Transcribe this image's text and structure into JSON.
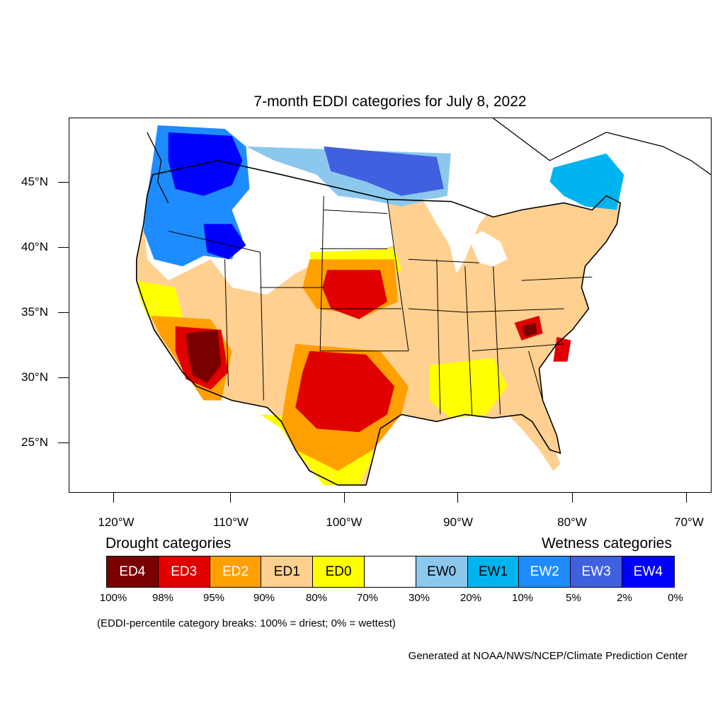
{
  "title": "7-month EDDI categories for July 8, 2022",
  "lat_labels": [
    "45°N",
    "40°N",
    "35°N",
    "30°N",
    "25°N"
  ],
  "lon_labels": [
    "120°W",
    "110°W",
    "100°W",
    "90°W",
    "80°W",
    "70°W"
  ],
  "legend": {
    "drought_heading": "Drought categories",
    "wetness_heading": "Wetness categories",
    "categories": [
      {
        "label": "ED4",
        "color": "#7a0000",
        "text_color": "#ffffff"
      },
      {
        "label": "ED3",
        "color": "#e00000",
        "text_color": "#ffffff"
      },
      {
        "label": "ED2",
        "color": "#ffa000",
        "text_color": "#ffffff"
      },
      {
        "label": "ED1",
        "color": "#ffd090",
        "text_color": "#000000"
      },
      {
        "label": "ED0",
        "color": "#ffff00",
        "text_color": "#000000"
      },
      {
        "label": "",
        "color": "#ffffff",
        "text_color": "#000000"
      },
      {
        "label": "EW0",
        "color": "#8cc8ee",
        "text_color": "#000000"
      },
      {
        "label": "EW1",
        "color": "#00b4f0",
        "text_color": "#000000"
      },
      {
        "label": "EW2",
        "color": "#1e8cff",
        "text_color": "#ffffff"
      },
      {
        "label": "EW3",
        "color": "#4060e0",
        "text_color": "#ffffff"
      },
      {
        "label": "EW4",
        "color": "#0000ff",
        "text_color": "#ffffff"
      }
    ],
    "percentiles": [
      "100%",
      "98%",
      "95%",
      "90%",
      "80%",
      "70%",
      "30%",
      "20%",
      "10%",
      "5%",
      "2%",
      "0%"
    ]
  },
  "note": "(EDDI-percentile category breaks: 100% = driest; 0% = wettest)",
  "credit": "Generated at NOAA/NWS/NCEP/Climate Prediction Center"
}
